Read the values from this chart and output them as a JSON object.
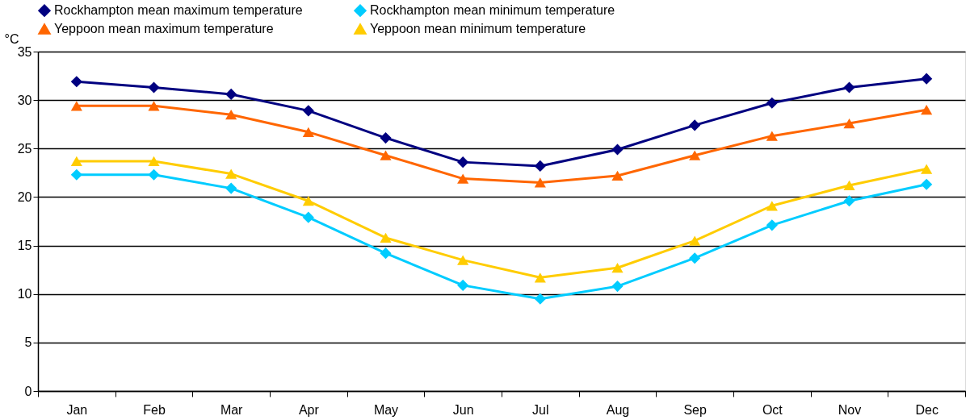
{
  "chart_data": {
    "type": "line",
    "ylabel": "°C",
    "categories": [
      "Jan",
      "Feb",
      "Mar",
      "Apr",
      "May",
      "Jun",
      "Jul",
      "Aug",
      "Sep",
      "Oct",
      "Nov",
      "Dec"
    ],
    "series": [
      {
        "name": "Rockhampton mean maximum temperature",
        "color": "#000080",
        "marker": "diamond",
        "values": [
          31.9,
          31.3,
          30.6,
          28.9,
          26.1,
          23.6,
          23.2,
          24.9,
          27.4,
          29.7,
          31.3,
          32.2
        ]
      },
      {
        "name": "Rockhampton mean minimum temperature",
        "color": "#00ccff",
        "marker": "diamond",
        "values": [
          22.3,
          22.3,
          20.9,
          17.9,
          14.2,
          10.9,
          9.5,
          10.8,
          13.7,
          17.1,
          19.6,
          21.3
        ]
      },
      {
        "name": "Yeppoon mean maximum temperature",
        "color": "#ff6600",
        "marker": "triangle",
        "values": [
          29.4,
          29.4,
          28.5,
          26.7,
          24.3,
          21.9,
          21.5,
          22.2,
          24.3,
          26.3,
          27.6,
          29.0
        ]
      },
      {
        "name": "Yeppoon mean minimum temperature",
        "color": "#ffcc00",
        "marker": "triangle",
        "values": [
          23.7,
          23.7,
          22.4,
          19.6,
          15.8,
          13.5,
          11.7,
          12.7,
          15.5,
          19.1,
          21.2,
          22.9
        ]
      }
    ],
    "ylim": [
      0,
      35
    ],
    "yticks": [
      0,
      5,
      10,
      15,
      20,
      25,
      30,
      35
    ],
    "grid": "y",
    "legend": "top",
    "line_style": "solid"
  }
}
